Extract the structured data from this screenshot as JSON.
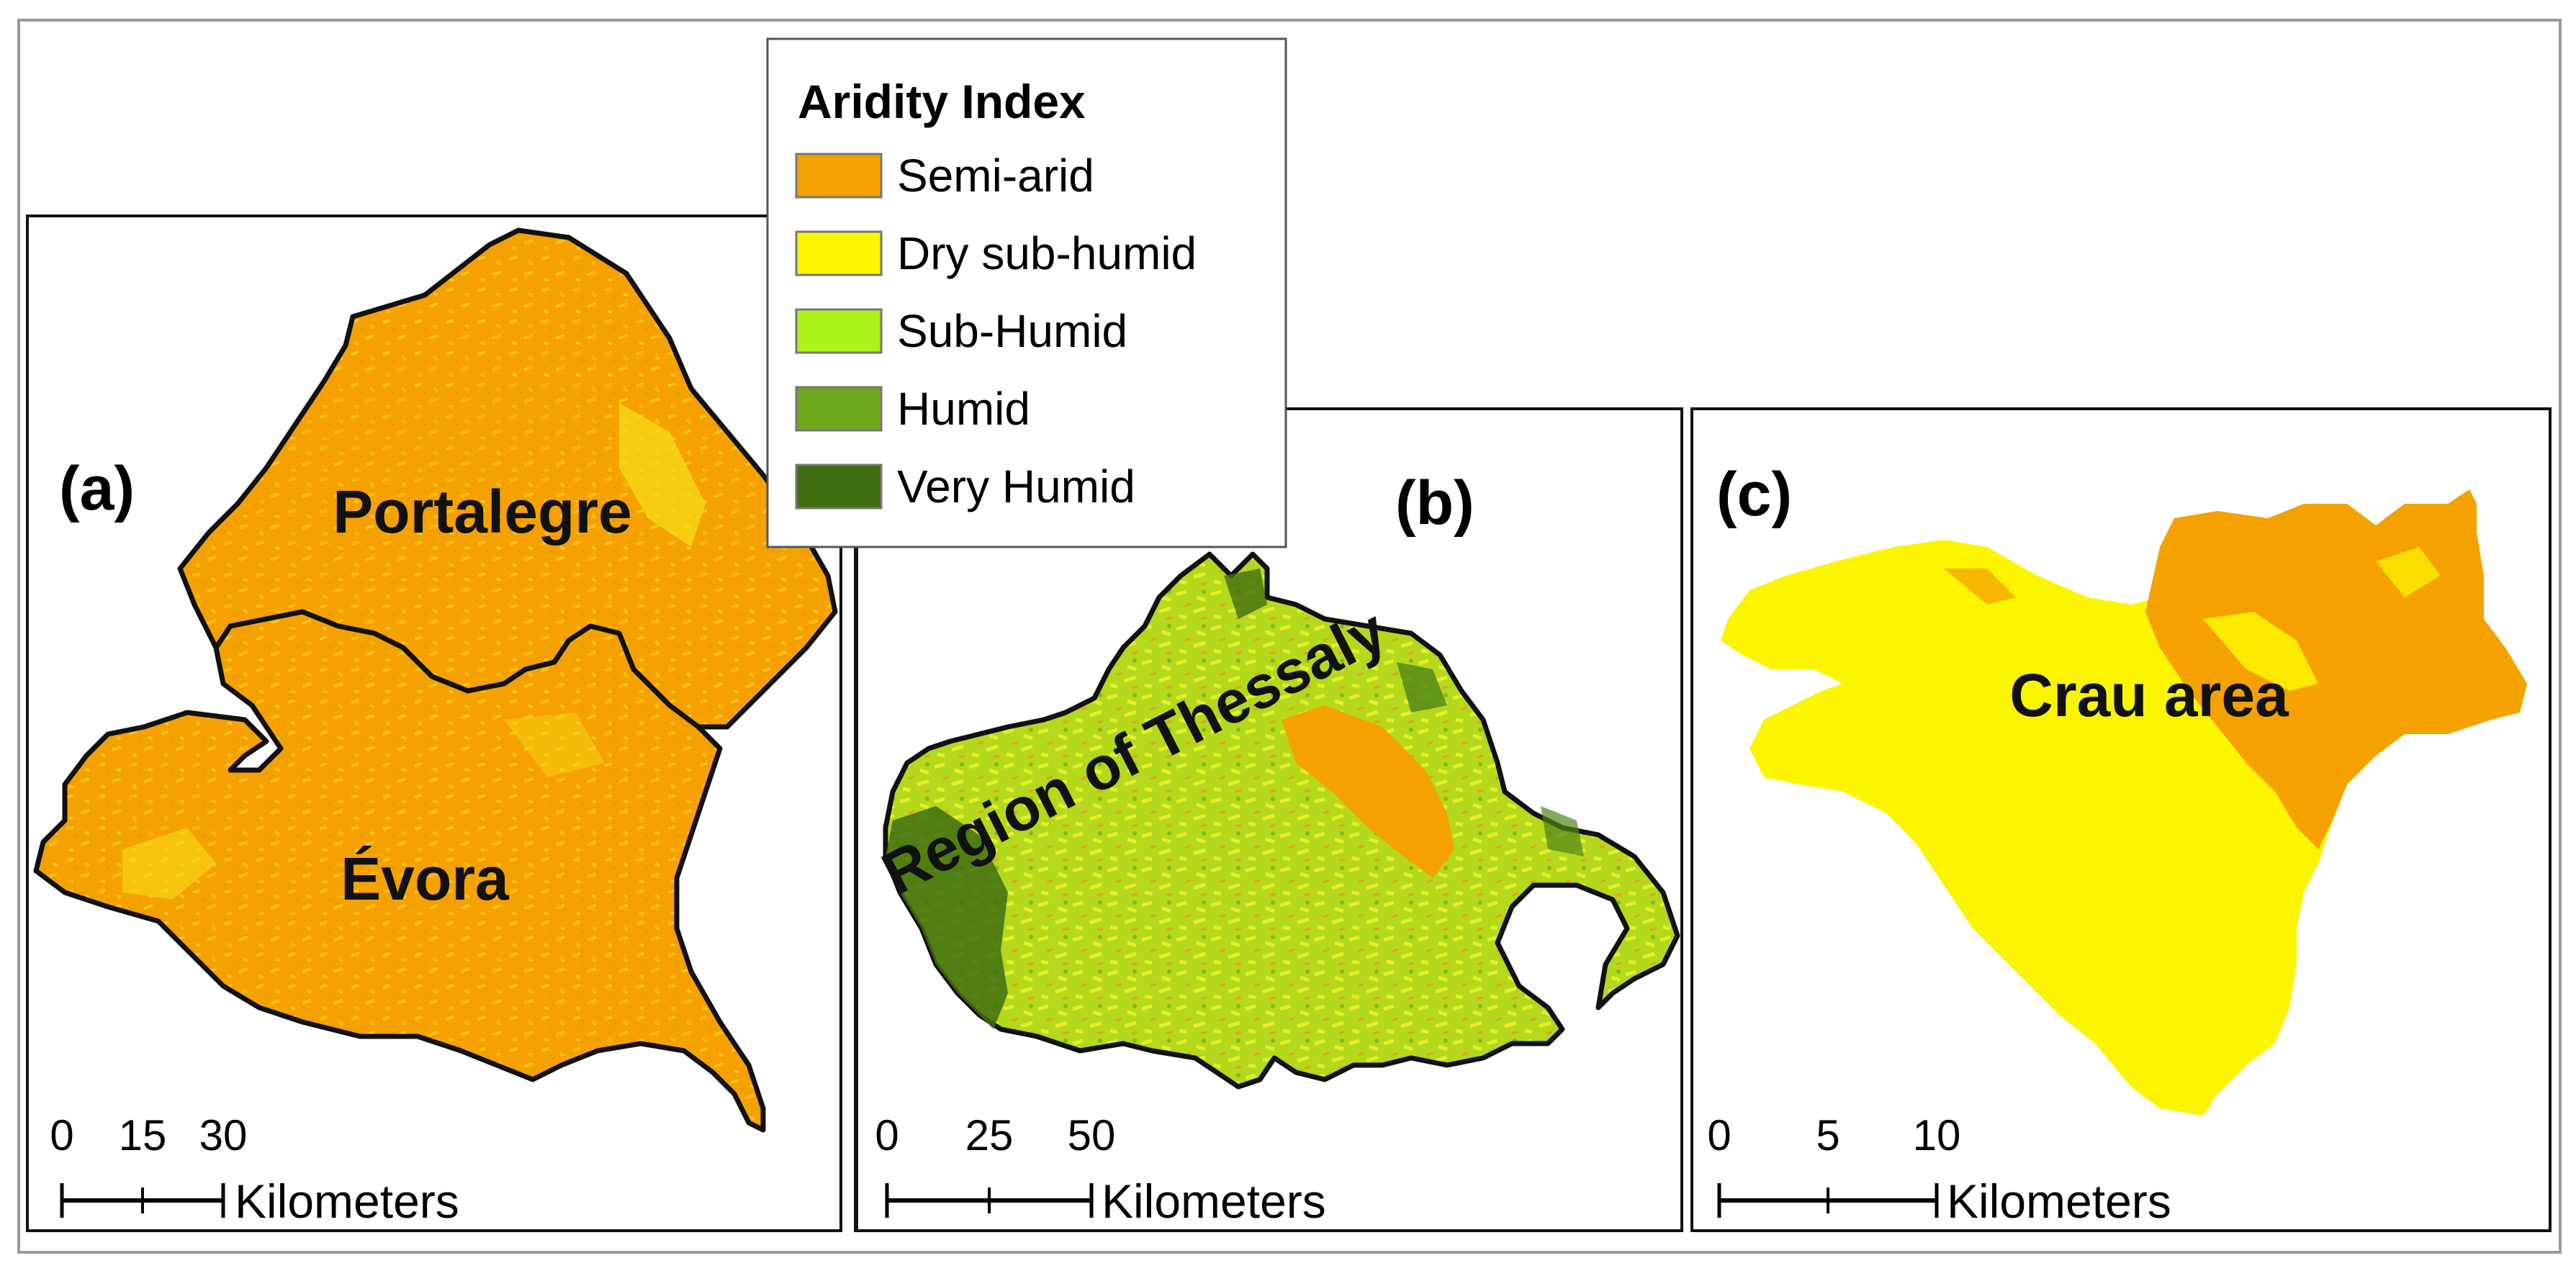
{
  "legend": {
    "title": "Aridity Index",
    "items": [
      {
        "label": "Semi-arid",
        "color": "#f5a100"
      },
      {
        "label": "Dry sub-humid",
        "color": "#fbf600"
      },
      {
        "label": "Sub-Humid",
        "color": "#adf21a"
      },
      {
        "label": "Humid",
        "color": "#6fa71a"
      },
      {
        "label": "Very Humid",
        "color": "#3f6e10"
      }
    ]
  },
  "panels": [
    {
      "letter": "(a)",
      "regions": [
        "Portalegre",
        "Évora"
      ],
      "scale": {
        "ticks": [
          "0",
          "15",
          "30"
        ],
        "unit": "Kilometers"
      }
    },
    {
      "letter": "(b)",
      "regions": [
        "Region of Thessaly"
      ],
      "scale": {
        "ticks": [
          "0",
          "25",
          "50"
        ],
        "unit": "Kilometers"
      }
    },
    {
      "letter": "(c)",
      "regions": [
        "Crau area"
      ],
      "scale": {
        "ticks": [
          "0",
          "5",
          "10"
        ],
        "unit": "Kilometers"
      }
    }
  ]
}
